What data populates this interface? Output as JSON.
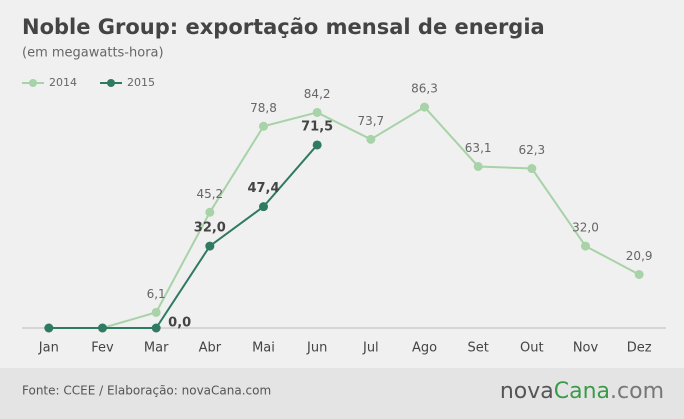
{
  "chart_data": {
    "type": "line",
    "title": "Noble Group: exportação mensal de energia",
    "subtitle": "(em megawatts-hora)",
    "categories": [
      "Jan",
      "Fev",
      "Mar",
      "Abr",
      "Mai",
      "Jun",
      "Jul",
      "Ago",
      "Set",
      "Out",
      "Nov",
      "Dez"
    ],
    "series": [
      {
        "name": "2014",
        "color": "#a8d2a8",
        "values": [
          0,
          0,
          6.1,
          45.2,
          78.8,
          84.2,
          73.7,
          86.3,
          63.1,
          62.3,
          32.0,
          20.9
        ],
        "value_labels": [
          null,
          null,
          "6,1",
          "45,2",
          "78,8",
          "84,2",
          "73,7",
          "86,3",
          "63,1",
          "62,3",
          "32,0",
          "20,9"
        ]
      },
      {
        "name": "2015",
        "color": "#2f7a63",
        "values": [
          0,
          0,
          0,
          32.0,
          47.4,
          71.5,
          null,
          null,
          null,
          null,
          null,
          null
        ],
        "value_labels": [
          null,
          null,
          "0,0",
          "32,0",
          "47,4",
          "71,5",
          null,
          null,
          null,
          null,
          null,
          null
        ]
      }
    ],
    "ylim": [
      0,
      100
    ],
    "legend": "top-left"
  },
  "source": "Fonte: CCEE / Elaboração: novaCana.com",
  "logo": [
    "nova",
    "Cana",
    ".com"
  ]
}
